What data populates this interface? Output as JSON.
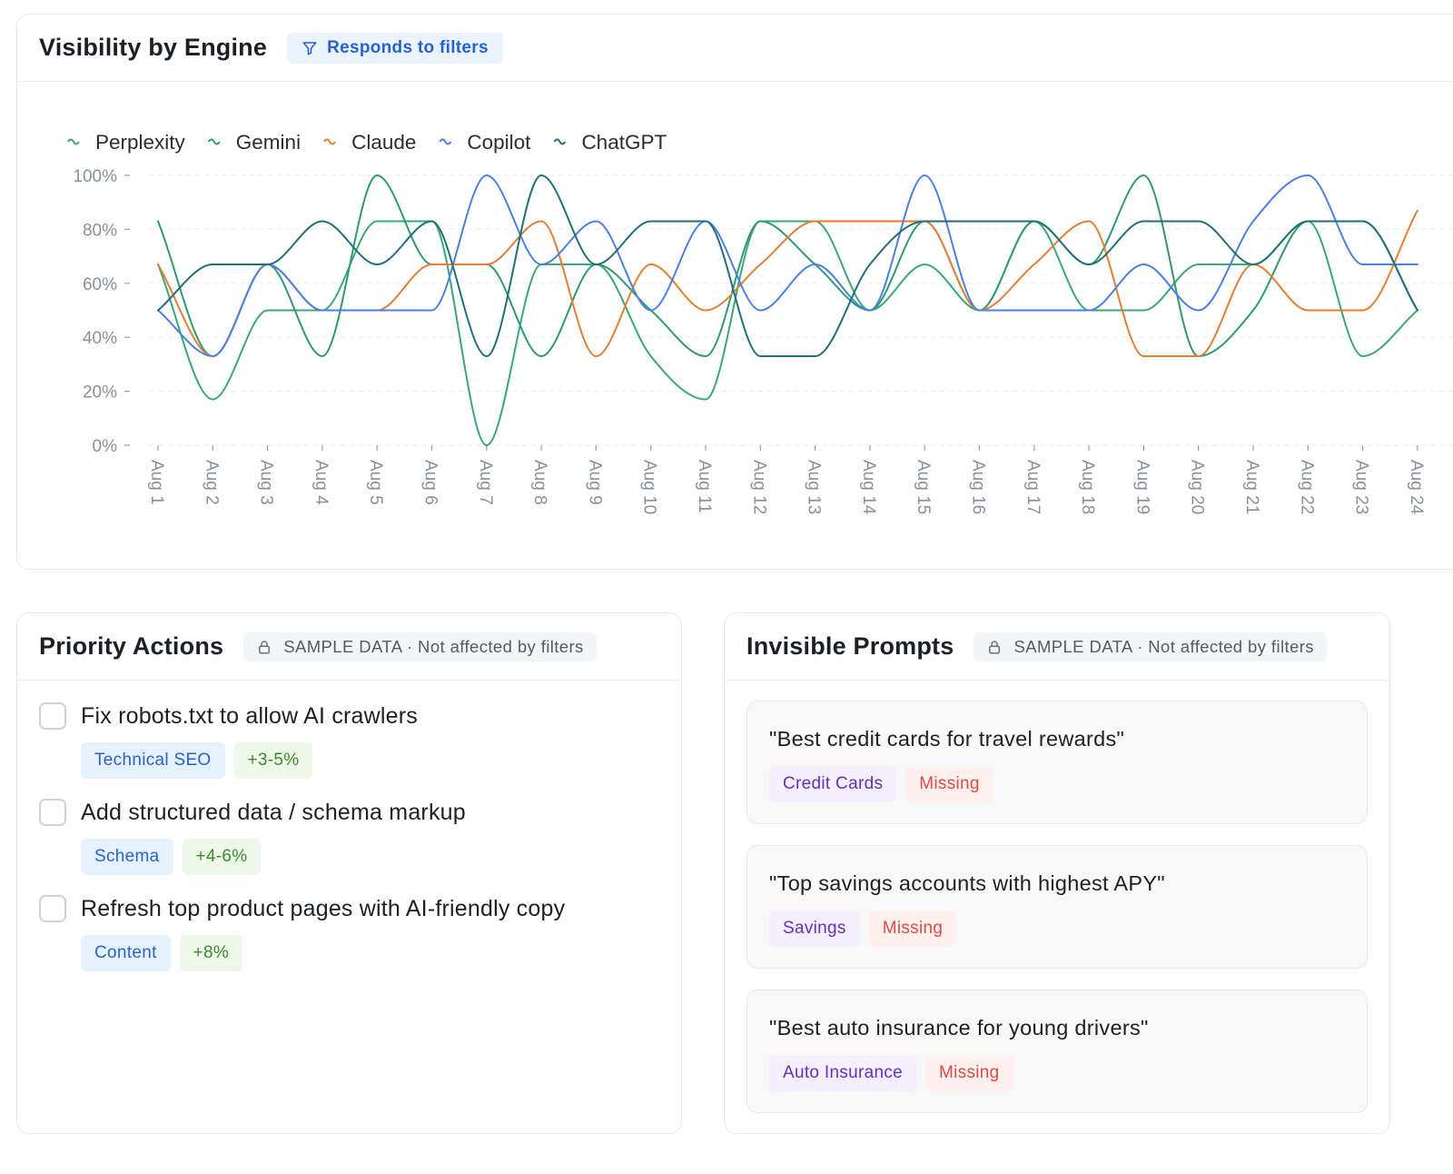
{
  "chart_card": {
    "title": "Visibility by Engine",
    "badge_label": "Responds to filters",
    "badge_icon": "filter-icon"
  },
  "chart_data": {
    "type": "line",
    "title": "",
    "xlabel": "",
    "ylabel": "",
    "ylim": [
      0,
      100
    ],
    "y_ticks": [
      "0%",
      "20%",
      "40%",
      "60%",
      "80%",
      "100%"
    ],
    "y_tick_values": [
      0,
      20,
      40,
      60,
      80,
      100
    ],
    "legend_placement": "top-left",
    "grid": "horizontal dashed",
    "categories": [
      "Aug 1",
      "Aug 2",
      "Aug 3",
      "Aug 4",
      "Aug 5",
      "Aug 6",
      "Aug 7",
      "Aug 8",
      "Aug 9",
      "Aug 10",
      "Aug 11",
      "Aug 12",
      "Aug 13",
      "Aug 14",
      "Aug 15",
      "Aug 16",
      "Aug 17",
      "Aug 18",
      "Aug 19",
      "Aug 20",
      "Aug 21",
      "Aug 22",
      "Aug 23",
      "Aug 24"
    ],
    "series": [
      {
        "name": "Perplexity",
        "color": "#3aa876",
        "values": [
          67,
          17,
          50,
          50,
          83,
          83,
          0,
          67,
          67,
          33,
          17,
          83,
          83,
          50,
          67,
          50,
          83,
          50,
          50,
          67,
          67,
          83,
          33,
          50
        ]
      },
      {
        "name": "Gemini",
        "color": "#2e9a6e",
        "values": [
          83,
          33,
          67,
          33,
          100,
          67,
          67,
          33,
          67,
          50,
          33,
          83,
          67,
          50,
          83,
          50,
          83,
          67,
          100,
          33,
          50,
          83,
          83,
          50
        ]
      },
      {
        "name": "Claude",
        "color": "#e57e32",
        "values": [
          67,
          33,
          67,
          50,
          50,
          67,
          67,
          83,
          33,
          67,
          50,
          67,
          83,
          83,
          83,
          50,
          67,
          83,
          33,
          33,
          67,
          50,
          50,
          87
        ]
      },
      {
        "name": "Copilot",
        "color": "#4a7fe6",
        "values": [
          50,
          33,
          67,
          50,
          50,
          50,
          100,
          67,
          83,
          50,
          83,
          50,
          67,
          50,
          100,
          50,
          50,
          50,
          67,
          50,
          83,
          100,
          67,
          67
        ]
      },
      {
        "name": "ChatGPT",
        "color": "#20707a",
        "values": [
          50,
          67,
          67,
          83,
          67,
          83,
          33,
          100,
          67,
          83,
          83,
          33,
          33,
          67,
          83,
          83,
          83,
          67,
          83,
          83,
          67,
          83,
          83,
          50
        ]
      }
    ]
  },
  "actions_card": {
    "title": "Priority Actions",
    "badge_label": "SAMPLE DATA · Not affected by filters",
    "badge_icon": "lock-icon",
    "items": [
      {
        "text": "Fix robots.txt to allow AI crawlers",
        "category": "Technical SEO",
        "impact": "+3-5%"
      },
      {
        "text": "Add structured data / schema markup",
        "category": "Schema",
        "impact": "+4-6%"
      },
      {
        "text": "Refresh top product pages with AI-friendly copy",
        "category": "Content",
        "impact": "+8%"
      }
    ]
  },
  "prompts_card": {
    "title": "Invisible Prompts",
    "badge_label": "SAMPLE DATA · Not affected by filters",
    "badge_icon": "lock-icon",
    "items": [
      {
        "text": "\"Best credit cards for travel rewards\"",
        "category": "Credit Cards",
        "status": "Missing"
      },
      {
        "text": "\"Top savings accounts with highest APY\"",
        "category": "Savings",
        "status": "Missing"
      },
      {
        "text": "\"Best auto insurance for young drivers\"",
        "category": "Auto Insurance",
        "status": "Missing"
      }
    ]
  }
}
